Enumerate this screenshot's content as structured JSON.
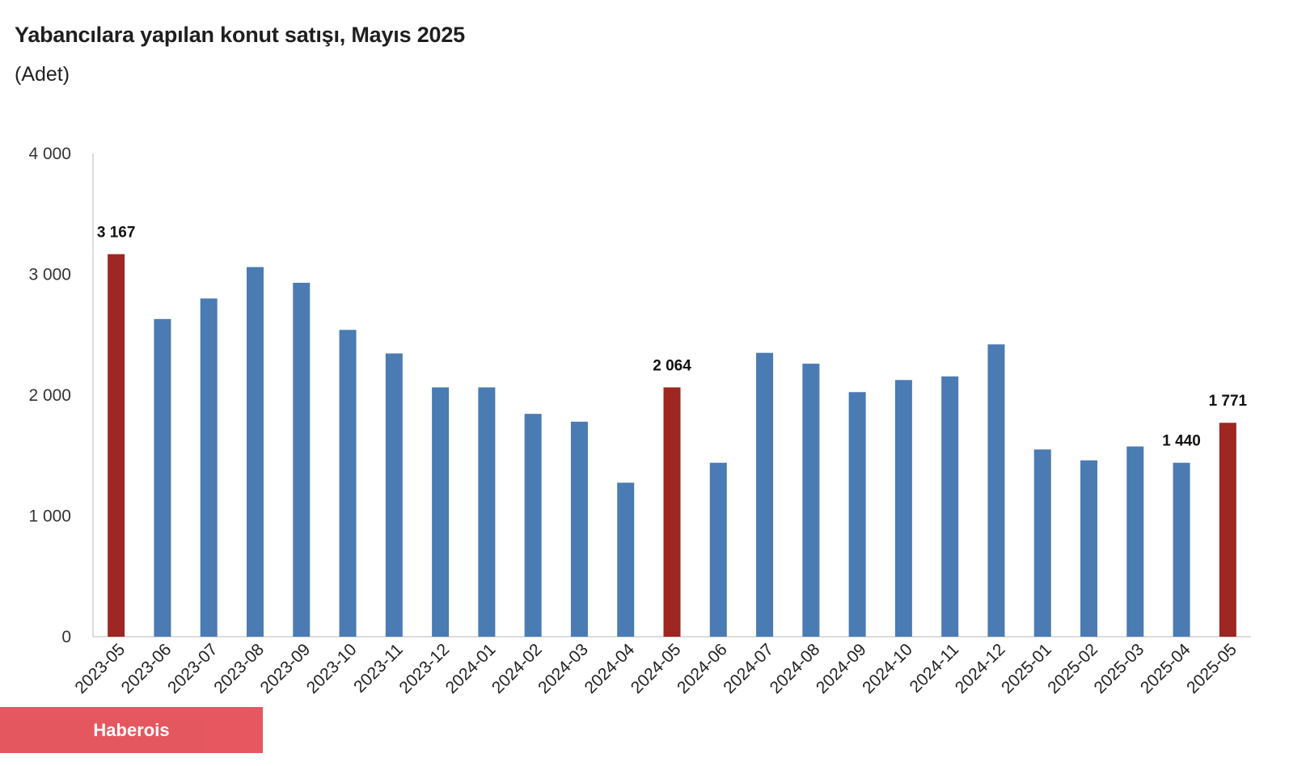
{
  "header": {
    "title": "Yabancılara yapılan konut satışı, Mayıs 2025",
    "subtitle": "(Adet)"
  },
  "watermark": {
    "text": "Haberois"
  },
  "colors": {
    "bar_default": "#4a7bb3",
    "bar_highlight": "#9e2623",
    "axis": "#d0d0d0",
    "watermark_bg": "#e5525a"
  },
  "chart_data": {
    "type": "bar",
    "title": "Yabancılara yapılan konut satışı, Mayıs 2025",
    "ylabel": "",
    "xlabel": "",
    "ylim": [
      0,
      4000
    ],
    "y_ticks": [
      0,
      1000,
      2000,
      3000,
      4000
    ],
    "y_tick_labels": [
      "0",
      "1 000",
      "2 000",
      "3 000",
      "4 000"
    ],
    "grid": false,
    "legend": "none",
    "categories": [
      "2023-05",
      "2023-06",
      "2023-07",
      "2023-08",
      "2023-09",
      "2023-10",
      "2023-11",
      "2023-12",
      "2024-01",
      "2024-02",
      "2024-03",
      "2024-04",
      "2024-05",
      "2024-06",
      "2024-07",
      "2024-08",
      "2024-09",
      "2024-10",
      "2024-11",
      "2024-12",
      "2025-01",
      "2025-02",
      "2025-03",
      "2025-04",
      "2025-05"
    ],
    "values": [
      3167,
      2630,
      2800,
      3060,
      2930,
      2540,
      2345,
      2064,
      2064,
      1845,
      1780,
      1275,
      2064,
      1440,
      2350,
      2260,
      2025,
      2125,
      2155,
      2420,
      1550,
      1460,
      1575,
      1440,
      1771
    ],
    "highlighted": [
      true,
      false,
      false,
      false,
      false,
      false,
      false,
      false,
      false,
      false,
      false,
      false,
      true,
      false,
      false,
      false,
      false,
      false,
      false,
      false,
      false,
      false,
      false,
      false,
      true
    ],
    "data_labels": [
      {
        "index": 0,
        "text": "3 167"
      },
      {
        "index": 12,
        "text": "2 064"
      },
      {
        "index": 23,
        "text": "1 440"
      },
      {
        "index": 24,
        "text": "1 771"
      }
    ]
  }
}
